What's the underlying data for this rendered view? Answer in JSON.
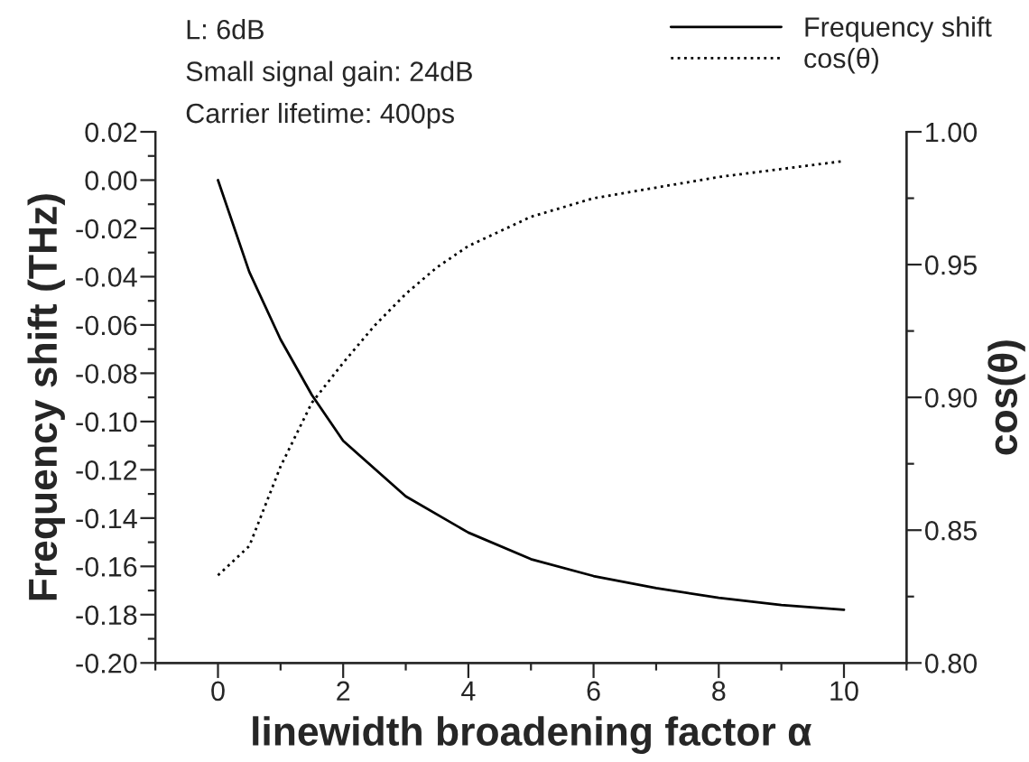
{
  "chart_data": {
    "type": "line",
    "xlabel": "linewidth broadening factor α",
    "ylabel": "Frequency shift (THz)",
    "y2label": "cos(θ)",
    "annotations": [
      "L: 6dB",
      "Small signal gain: 24dB",
      "Carrier lifetime: 400ps"
    ],
    "legend": "top right",
    "grid": false,
    "marker": "none",
    "xlim": [
      -1,
      11
    ],
    "xticks": [
      {
        "value": -1,
        "label": null
      },
      {
        "value": 0,
        "label": "0"
      },
      {
        "value": 1,
        "label": null
      },
      {
        "value": 2,
        "label": "2"
      },
      {
        "value": 3,
        "label": null
      },
      {
        "value": 4,
        "label": "4"
      },
      {
        "value": 5,
        "label": null
      },
      {
        "value": 6,
        "label": "6"
      },
      {
        "value": 7,
        "label": null
      },
      {
        "value": 8,
        "label": "8"
      },
      {
        "value": 9,
        "label": null
      },
      {
        "value": 10,
        "label": "10"
      },
      {
        "value": 11,
        "label": null
      }
    ],
    "ylim": [
      -0.2,
      0.02
    ],
    "yticks": [
      {
        "value": -0.2,
        "label": "-0.20"
      },
      {
        "value": -0.19,
        "label": null
      },
      {
        "value": -0.18,
        "label": "-0.18"
      },
      {
        "value": -0.17,
        "label": null
      },
      {
        "value": -0.16,
        "label": "-0.16"
      },
      {
        "value": -0.15,
        "label": null
      },
      {
        "value": -0.14,
        "label": "-0.14"
      },
      {
        "value": -0.13,
        "label": null
      },
      {
        "value": -0.12,
        "label": "-0.12"
      },
      {
        "value": -0.11,
        "label": null
      },
      {
        "value": -0.1,
        "label": "-0.10"
      },
      {
        "value": -0.09,
        "label": null
      },
      {
        "value": -0.08,
        "label": "-0.08"
      },
      {
        "value": -0.07,
        "label": null
      },
      {
        "value": -0.06,
        "label": "-0.06"
      },
      {
        "value": -0.05,
        "label": null
      },
      {
        "value": -0.04,
        "label": "-0.04"
      },
      {
        "value": -0.03,
        "label": null
      },
      {
        "value": -0.02,
        "label": "-0.02"
      },
      {
        "value": -0.01,
        "label": null
      },
      {
        "value": 0,
        "label": "0.00"
      },
      {
        "value": 0.01,
        "label": null
      },
      {
        "value": 0.02,
        "label": "0.02"
      }
    ],
    "y2lim": [
      0.8,
      1.0
    ],
    "y2ticks": [
      {
        "value": 0.8,
        "label": "0.80"
      },
      {
        "value": 0.825,
        "label": null
      },
      {
        "value": 0.85,
        "label": "0.85"
      },
      {
        "value": 0.875,
        "label": null
      },
      {
        "value": 0.9,
        "label": "0.90"
      },
      {
        "value": 0.925,
        "label": null
      },
      {
        "value": 0.95,
        "label": "0.95"
      },
      {
        "value": 0.975,
        "label": null
      },
      {
        "value": 1.0,
        "label": "1.00"
      }
    ],
    "series": [
      {
        "name": "Frequency shift",
        "color": "#000000",
        "line_style": "solid",
        "x": [
          0,
          0.5,
          1,
          1.5,
          2,
          3,
          4,
          5,
          6,
          7,
          8,
          9,
          10
        ],
        "values": [
          0,
          -0.038,
          -0.066,
          -0.089,
          -0.108,
          -0.131,
          -0.146,
          -0.157,
          -0.164,
          -0.169,
          -0.173,
          -0.176,
          -0.178
        ]
      },
      {
        "name": "cos(θ)",
        "color": "#000000",
        "line_style": "dotted",
        "axis": "y2",
        "x": [
          0,
          0.5,
          1,
          1.5,
          2,
          2.5,
          3,
          3.5,
          4,
          5,
          6,
          7,
          8,
          9,
          10
        ],
        "values": [
          0.833,
          0.844,
          0.874,
          0.898,
          0.913,
          0.927,
          0.939,
          0.949,
          0.957,
          0.968,
          0.975,
          0.979,
          0.983,
          0.986,
          0.989
        ]
      }
    ]
  }
}
